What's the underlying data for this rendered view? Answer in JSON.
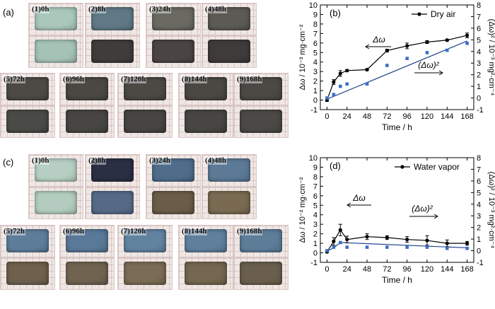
{
  "panels": {
    "a": "(a)",
    "b": "(b)",
    "c": "(c)",
    "d": "(d)"
  },
  "photos_a": {
    "labels": [
      "(1)0h",
      "(2)8h",
      "(3)24h",
      "(4)48h",
      "(5)72h",
      "(6)96h",
      "(7)120h",
      "(8)144h",
      "(9)168h"
    ],
    "top_colors": [
      "#a9c7bb",
      "#5f7a86",
      "#6a6a62",
      "#5c5a54",
      "#4d4a45",
      "#4a4843",
      "#4b4944",
      "#4a4843",
      "#4b4944"
    ],
    "bottom_colors": [
      "#a5c2b6",
      "#3f3d3c",
      "#4a4544",
      "#3f3b3b",
      "#4a4a47",
      "#474643",
      "#464542",
      "#474643",
      "#4a4946"
    ]
  },
  "photos_c": {
    "labels": [
      "(1)0h",
      "(2)8h",
      "(3)24h",
      "(4)48h",
      "(5)72h",
      "(6)96h",
      "(7)120h",
      "(8)144h",
      "(9)168h"
    ],
    "top_colors": [
      "#b6cfc2",
      "#2b2f44",
      "#4f6d8a",
      "#5c7a96",
      "#5d7d9a",
      "#5a7897",
      "#6283a0",
      "#5f7f9c",
      "#5d7d99"
    ],
    "bottom_colors": [
      "#b3ccbf",
      "#566a88",
      "#6a5c48",
      "#7a6a52",
      "#6e604c",
      "#706350",
      "#7a6c56",
      "#74664f",
      "#6a5f4e"
    ]
  },
  "chart_data": [
    {
      "type": "line",
      "panel": "(b)",
      "xlabel": "Time / h",
      "ylabel": "Δω / 10⁻³ mg·cm⁻²",
      "y2label": "(Δω)² / 10⁻³ mg²·cm⁻⁴",
      "x_ticks": [
        0,
        24,
        48,
        72,
        96,
        120,
        144,
        168
      ],
      "y_ticks": [
        -1,
        0,
        1,
        2,
        3,
        4,
        5,
        6,
        7,
        8,
        9,
        10
      ],
      "y2_ticks": [
        -1,
        0,
        1,
        2,
        3,
        4,
        5,
        6,
        7,
        8
      ],
      "xlim": [
        -8,
        176
      ],
      "ylim": [
        -1,
        10
      ],
      "y2lim": [
        -1,
        8
      ],
      "grid": false,
      "legend": {
        "position": "top-right",
        "entries": [
          "Dry air"
        ]
      },
      "annotations": [
        {
          "text": "Δω",
          "arrow": "left"
        },
        {
          "text": "(Δω)²",
          "arrow": "right"
        }
      ],
      "series": [
        {
          "name": "Dry air",
          "axis": "left",
          "x": [
            0,
            8,
            16,
            24,
            48,
            72,
            96,
            120,
            144,
            168
          ],
          "y": [
            0.0,
            1.9,
            2.8,
            3.1,
            3.2,
            5.2,
            5.7,
            6.1,
            6.3,
            6.8
          ],
          "err": [
            0.15,
            0.25,
            0.3,
            0.1,
            0.1,
            0.15,
            0.3,
            0.15,
            0.1,
            0.25
          ]
        },
        {
          "axis": "right",
          "x": [
            0,
            8,
            16,
            24,
            48,
            72,
            96,
            120,
            144,
            168
          ],
          "y": [
            0.0,
            0.3,
            1.0,
            1.2,
            1.2,
            2.8,
            3.4,
            3.9,
            4.1,
            4.7
          ]
        }
      ],
      "fit_line": {
        "axis": "right",
        "x": [
          0,
          168
        ],
        "y": [
          -0.1,
          4.9
        ]
      },
      "colors": {
        "primary": "#000000",
        "secondary": "#3a6fc8",
        "fit": "#24448c"
      }
    },
    {
      "type": "line",
      "panel": "(d)",
      "xlabel": "Time / h",
      "ylabel": "Δω / 10⁻² mg·cm⁻²",
      "y2label": "(Δω)² / 10⁻³ mg²·cm⁻⁴",
      "x_ticks": [
        0,
        24,
        48,
        72,
        96,
        120,
        144,
        168
      ],
      "y_ticks": [
        -1,
        0,
        1,
        2,
        3,
        4,
        5,
        6,
        7,
        8,
        9,
        10
      ],
      "y2_ticks": [
        -1,
        0,
        1,
        2,
        3,
        4,
        5,
        6,
        7,
        8
      ],
      "xlim": [
        -8,
        176
      ],
      "ylim": [
        -1,
        10
      ],
      "y2lim": [
        -1,
        8
      ],
      "grid": false,
      "legend": {
        "position": "top-right",
        "entries": [
          "Water vapor"
        ]
      },
      "annotations": [
        {
          "text": "Δω",
          "arrow": "left"
        },
        {
          "text": "(Δω)²",
          "arrow": "right"
        }
      ],
      "series": [
        {
          "name": "Water vapor",
          "axis": "left",
          "x": [
            0,
            8,
            16,
            24,
            48,
            72,
            96,
            120,
            144,
            168
          ],
          "y": [
            0.1,
            1.2,
            2.4,
            1.4,
            1.7,
            1.6,
            1.4,
            1.3,
            1.0,
            1.0
          ],
          "err": [
            0.1,
            0.4,
            0.6,
            0.35,
            0.3,
            0.2,
            0.3,
            0.5,
            0.35,
            0.2
          ]
        },
        {
          "axis": "right",
          "x": [
            0,
            8,
            16,
            24,
            48,
            72,
            96,
            120,
            144,
            168
          ],
          "y": [
            0.0,
            0.3,
            0.7,
            0.3,
            0.3,
            0.3,
            0.3,
            0.3,
            0.2,
            0.2
          ]
        }
      ],
      "fit_line": {
        "axis": "right",
        "x": [
          0,
          8,
          16,
          168
        ],
        "y": [
          -0.05,
          0.25,
          0.7,
          0.25
        ]
      },
      "colors": {
        "primary": "#000000",
        "secondary": "#3a6fc8",
        "fit": "#24448c"
      }
    }
  ]
}
